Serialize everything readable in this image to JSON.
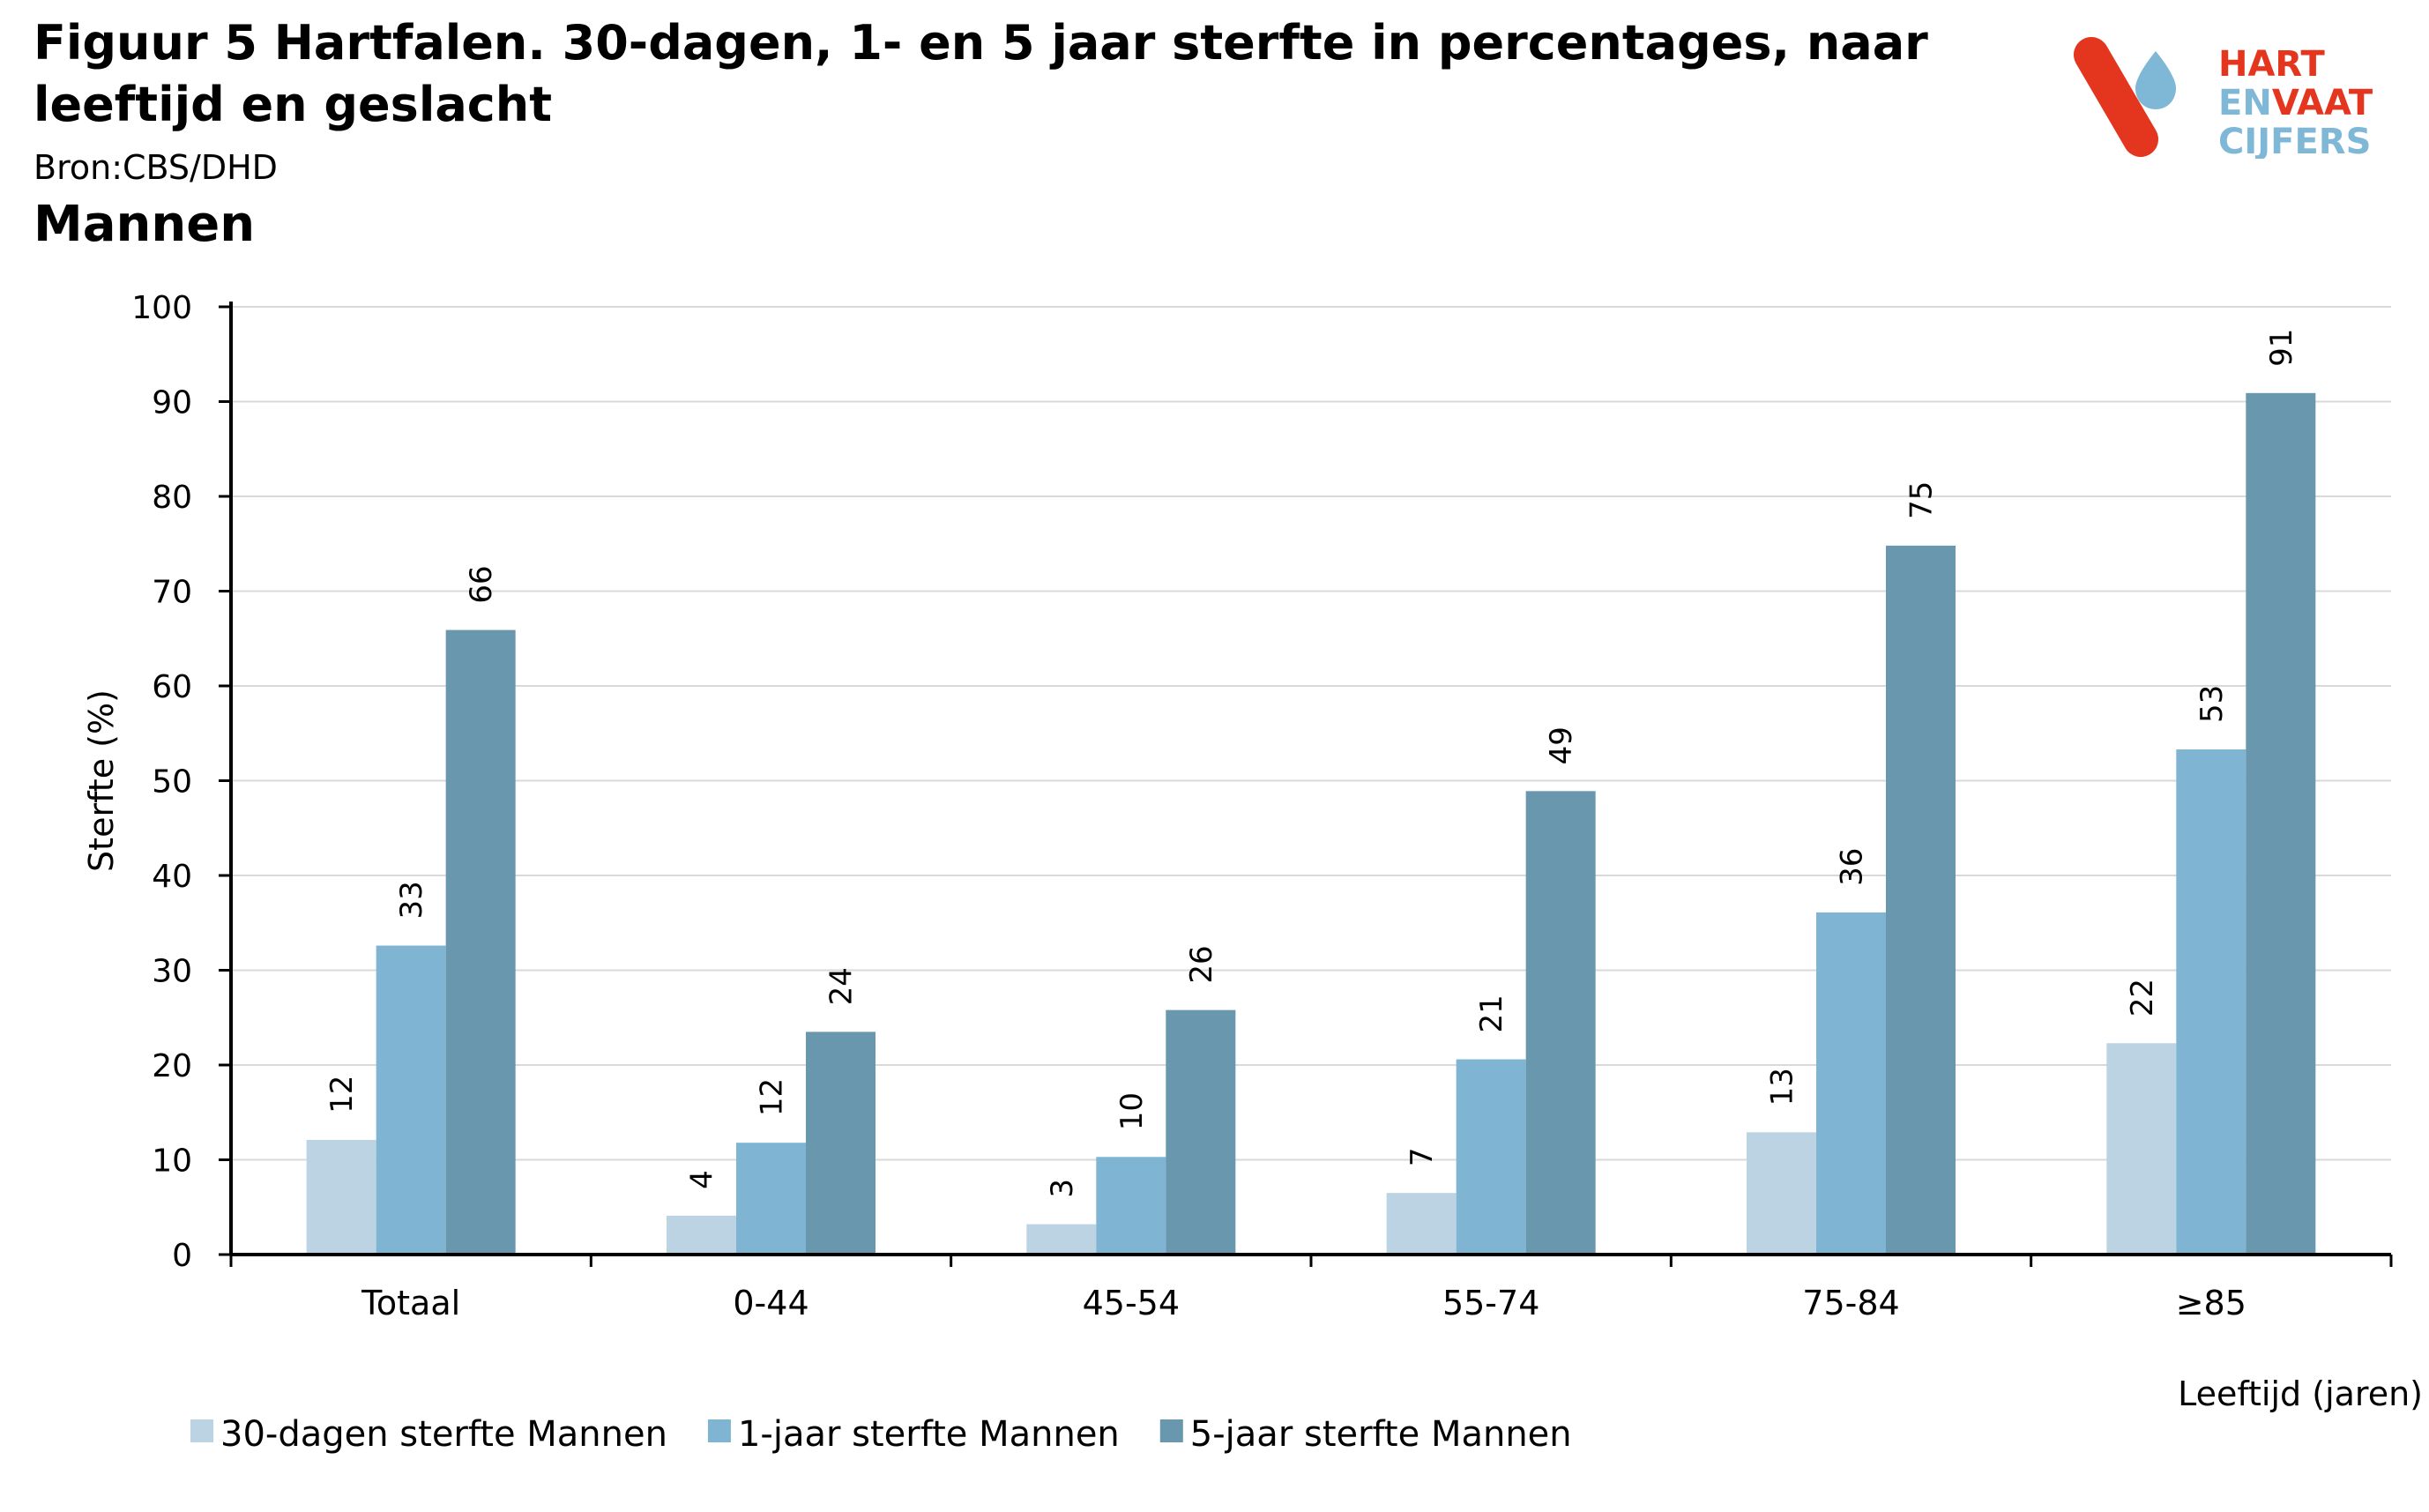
{
  "title": "Figuur 5 Hartfalen. 30-dagen, 1- en 5 jaar sterfte in percentages, naar leeftijd en geslacht",
  "source": "Bron:CBS/DHD",
  "subtitle": "Mannen",
  "logo": {
    "line1": "HART",
    "line2a": "EN",
    "line2b": "VAAT",
    "line3": "CIJFERS",
    "colors": {
      "red": "#e4361f",
      "blue": "#7fb8d6"
    }
  },
  "chart_data": {
    "type": "bar",
    "categories": [
      "Totaal",
      "0-44",
      "45-54",
      "55-74",
      "75-84",
      "≥85"
    ],
    "series": [
      {
        "name": "30-dagen sterfte Mannen",
        "color": "#bcd3e3",
        "values": [
          12,
          4,
          3,
          7,
          13,
          22
        ],
        "bar_values": [
          12.1,
          4.1,
          3.2,
          6.5,
          12.9,
          22.3
        ]
      },
      {
        "name": "1-jaar sterfte Mannen",
        "color": "#7fb5d2",
        "values": [
          33,
          12,
          10,
          21,
          36,
          53
        ],
        "bar_values": [
          32.6,
          11.8,
          10.3,
          20.6,
          36.1,
          53.3
        ]
      },
      {
        "name": "5-jaar sterfte Mannen",
        "color": "#6997ad",
        "values": [
          66,
          24,
          26,
          49,
          75,
          91
        ],
        "bar_values": [
          65.9,
          23.5,
          25.8,
          48.9,
          74.8,
          90.9
        ]
      }
    ],
    "ylabel": "Sterfte (%)",
    "xlabel": "Leeftijd (jaren)",
    "ylim": [
      0,
      100
    ],
    "yticks": [
      "0",
      "10",
      "20",
      "30",
      "40",
      "50",
      "60",
      "70",
      "80",
      "90",
      "100"
    ],
    "grid": true,
    "legend": "bottom-left",
    "data_labels": true
  }
}
